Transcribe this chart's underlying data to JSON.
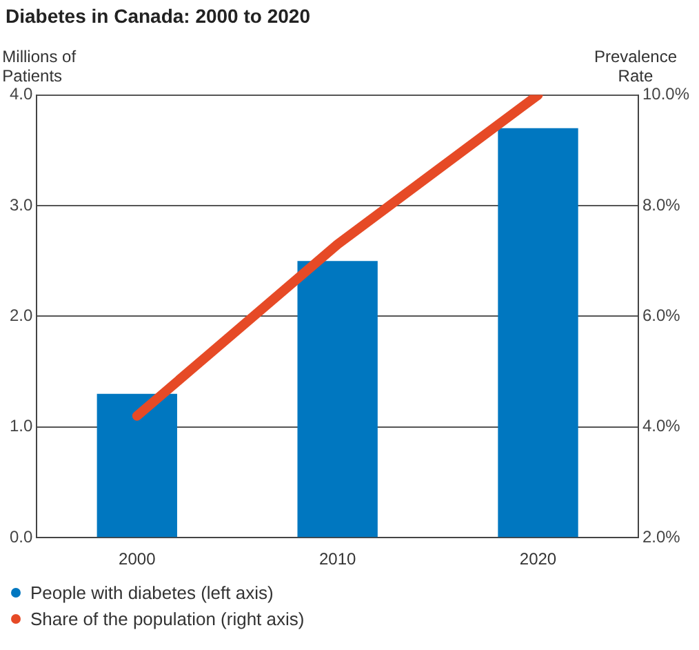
{
  "chart_data": {
    "type": "bar",
    "title": "Diabetes in Canada: 2000 to 2020",
    "categories": [
      "2000",
      "2010",
      "2020"
    ],
    "ylabel": "Millions of Patients",
    "y2label": "Prevalence Rate",
    "series": [
      {
        "name": "People with diabetes (left axis)",
        "color": "#0077c0",
        "values": [
          1.3,
          2.5,
          3.7
        ]
      },
      {
        "name": "Share of the population (right axis)",
        "type": "line",
        "axis": "y2",
        "color": "#e64a26",
        "marker": "none",
        "values": [
          4.2,
          7.3,
          10.0
        ]
      }
    ],
    "ylim": [
      0,
      4
    ],
    "yticks": [
      {
        "value": 0,
        "label": "0.0"
      },
      {
        "value": 1,
        "label": "1.0"
      },
      {
        "value": 2,
        "label": "2.0"
      },
      {
        "value": 3,
        "label": "3.0"
      },
      {
        "value": 4,
        "label": "4.0"
      }
    ],
    "y2lim": [
      2,
      10
    ],
    "y2ticks": [
      {
        "value": 2,
        "label": "2.0%"
      },
      {
        "value": 4,
        "label": "4.0%"
      },
      {
        "value": 6,
        "label": "6.0%"
      },
      {
        "value": 8,
        "label": "8.0%"
      },
      {
        "value": 10,
        "label": "10.0%"
      }
    ],
    "grid": "y",
    "legend": "bottom left"
  }
}
